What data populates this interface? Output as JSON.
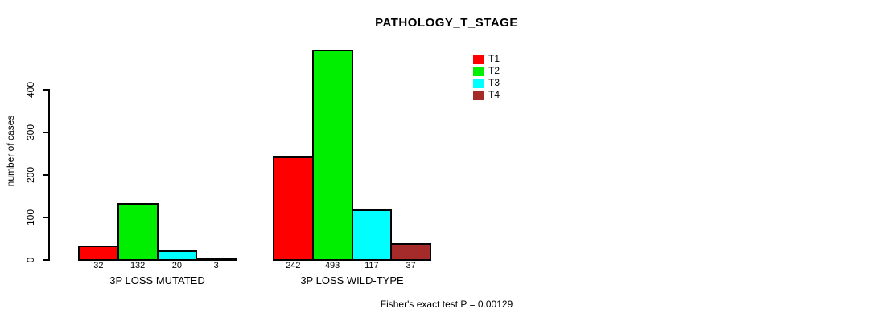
{
  "chart_data": {
    "type": "bar",
    "title": "PATHOLOGY_T_STAGE",
    "ylabel": "number of cases",
    "xlabel": "",
    "ylim": [
      0,
      400
    ],
    "yticks": [
      0,
      100,
      200,
      300,
      400
    ],
    "grid": false,
    "legend_position": "top-right",
    "categories": [
      "3P LOSS MUTATED",
      "3P LOSS WILD-TYPE"
    ],
    "series": [
      {
        "name": "T1",
        "color": "#FF0000",
        "values": [
          32,
          242
        ]
      },
      {
        "name": "T2",
        "color": "#00EE00",
        "values": [
          132,
          493
        ]
      },
      {
        "name": "T3",
        "color": "#00FFFF",
        "values": [
          20,
          117
        ]
      },
      {
        "name": "T4",
        "color": "#A52A2A",
        "values": [
          3,
          37
        ]
      }
    ],
    "bar_value_labels": [
      [
        "32",
        "132",
        "20",
        "3"
      ],
      [
        "242",
        "493",
        "117",
        "37"
      ]
    ],
    "footnote": "Fisher's exact test P = 0.00129",
    "axis_color": "#000000",
    "background_color": "#FFFFFF"
  }
}
